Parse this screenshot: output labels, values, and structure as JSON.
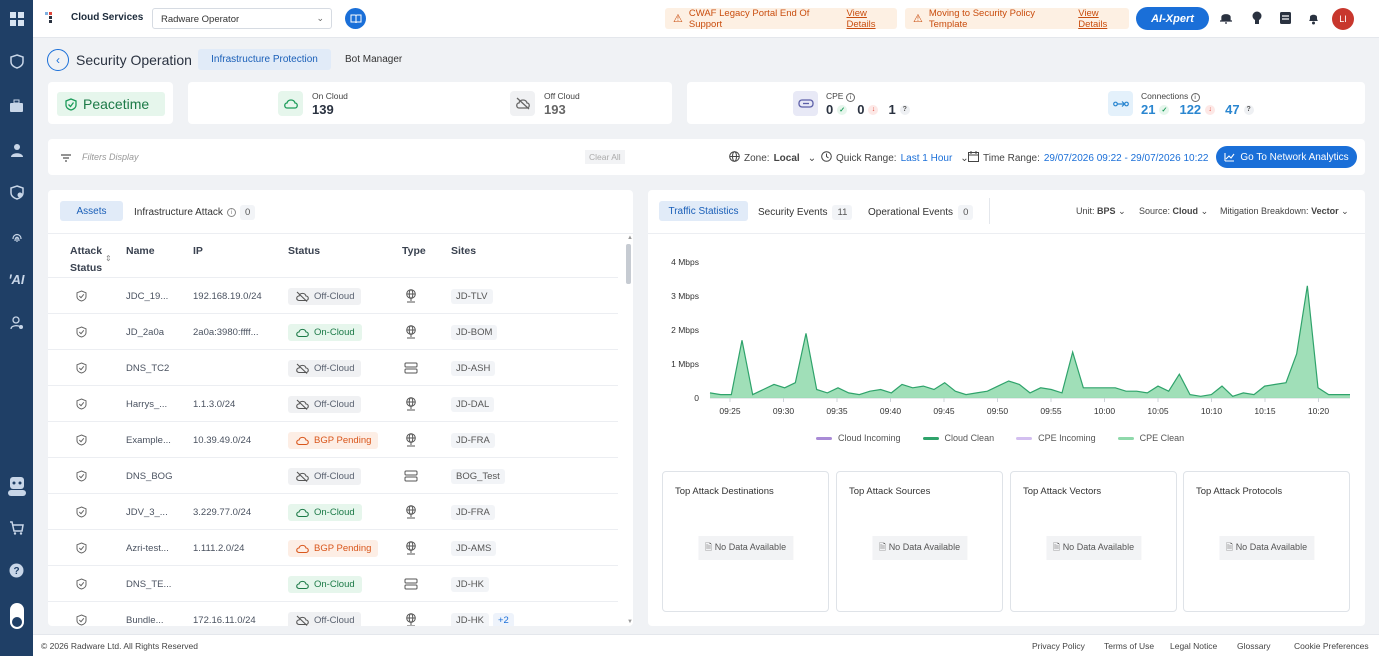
{
  "topbar": {
    "brand": "Cloud Services",
    "account": "Radware Operator",
    "alert1_text": "CWAF Legacy Portal End Of Support",
    "alert1_link": "View Details",
    "alert2_text": "Moving to Security Policy Template",
    "alert2_link": "View Details",
    "ai_label": "AI-Xpert",
    "avatar": "LI"
  },
  "header": {
    "title": "Security Operation",
    "tabs": [
      {
        "label": "Infrastructure Protection",
        "active": true
      },
      {
        "label": "Bot Manager",
        "active": false
      }
    ]
  },
  "summary": {
    "status": "Peacetime",
    "on_cloud_label": "On Cloud",
    "on_cloud_value": "139",
    "off_cloud_label": "Off Cloud",
    "off_cloud_value": "193",
    "cpe_label": "CPE",
    "cpe_ok": "0",
    "cpe_down": "0",
    "cpe_unknown": "1",
    "conn_label": "Connections",
    "conn_ok": "21",
    "conn_down": "122",
    "conn_unknown": "47"
  },
  "filters": {
    "placeholder": "Filters Display",
    "clear": "Clear All",
    "zone_label": "Zone:",
    "zone_value": "Local",
    "range_label": "Quick Range:",
    "range_value": "Last 1 Hour",
    "time_label": "Time Range:",
    "time_value": "29/07/2026 09:22 - 29/07/2026 10:22",
    "go_button": "Go To Network Analytics"
  },
  "assets": {
    "tab_assets": "Assets",
    "tab_attack": "Infrastructure Attack",
    "attack_count": "0",
    "columns": {
      "attack_status_1": "Attack",
      "attack_status_2": "Status",
      "name": "Name",
      "ip": "IP",
      "status": "Status",
      "type": "Type",
      "sites": "Sites"
    },
    "rows": [
      {
        "name": "JDC_19...",
        "ip": "192.168.19.0/24",
        "status": "Off-Cloud",
        "kind": "off",
        "type": "globe",
        "site": "JD-TLV"
      },
      {
        "name": "JD_2a0a",
        "ip": "2a0a:3980:ffff...",
        "status": "On-Cloud",
        "kind": "on",
        "type": "globe",
        "site": "JD-BOM"
      },
      {
        "name": "DNS_TC2",
        "ip": "",
        "status": "Off-Cloud",
        "kind": "off",
        "type": "server",
        "site": "JD-ASH"
      },
      {
        "name": "Harrys_...",
        "ip": "1.1.3.0/24",
        "status": "Off-Cloud",
        "kind": "off",
        "type": "globe",
        "site": "JD-DAL"
      },
      {
        "name": "Example...",
        "ip": "10.39.49.0/24",
        "status": "BGP Pending",
        "kind": "pend",
        "type": "globe",
        "site": "JD-FRA"
      },
      {
        "name": "DNS_BOG",
        "ip": "",
        "status": "Off-Cloud",
        "kind": "off",
        "type": "server",
        "site": "BOG_Test"
      },
      {
        "name": "JDV_3_...",
        "ip": "3.229.77.0/24",
        "status": "On-Cloud",
        "kind": "on",
        "type": "globe",
        "site": "JD-FRA"
      },
      {
        "name": "Azri-test...",
        "ip": "1.111.2.0/24",
        "status": "BGP Pending",
        "kind": "pend",
        "type": "globe",
        "site": "JD-AMS"
      },
      {
        "name": "DNS_TE...",
        "ip": "",
        "status": "On-Cloud",
        "kind": "on",
        "type": "server",
        "site": "JD-HK"
      },
      {
        "name": "Bundle...",
        "ip": "172.16.11.0/24",
        "status": "Off-Cloud",
        "kind": "off",
        "type": "globe",
        "site": "JD-HK",
        "extra": "+2"
      }
    ]
  },
  "traffic": {
    "tab_stats": "Traffic Statistics",
    "tab_security": "Security Events",
    "security_count": "11",
    "tab_operational": "Operational Events",
    "operational_count": "0",
    "unit_label": "Unit:",
    "unit_value": "BPS",
    "source_label": "Source:",
    "source_value": "Cloud",
    "mitigation_label": "Mitigation Breakdown:",
    "mitigation_value": "Vector"
  },
  "chart_data": {
    "type": "area",
    "title": "",
    "xlabel": "",
    "ylabel": "",
    "yticks": [
      "0",
      "1 Mbps",
      "2 Mbps",
      "3 Mbps",
      "4 Mbps"
    ],
    "ylim": [
      0,
      4
    ],
    "xticks": [
      "09:25",
      "09:30",
      "09:35",
      "09:40",
      "09:45",
      "09:50",
      "09:55",
      "10:00",
      "10:05",
      "10:10",
      "10:15",
      "10:20"
    ],
    "series": [
      {
        "name": "Cloud Incoming",
        "color": "#a98bd6",
        "values": [
          0,
          0,
          0,
          0,
          0,
          0,
          0,
          0,
          0,
          0,
          0,
          0,
          0,
          0,
          0,
          0,
          0,
          0,
          0,
          0,
          0,
          0,
          0,
          0,
          0,
          0,
          0,
          0,
          0,
          0,
          0,
          0,
          0,
          0,
          0,
          0,
          0,
          0,
          0,
          0,
          0,
          0,
          0,
          0,
          0,
          0,
          0,
          0,
          0,
          0,
          0,
          0,
          0,
          0,
          0,
          0,
          0,
          0,
          0,
          0,
          0
        ]
      },
      {
        "name": "Cloud Clean",
        "color": "#2fa36b",
        "values": [
          0.15,
          0.1,
          0.1,
          1.7,
          0.1,
          0.25,
          0.4,
          0.3,
          0.45,
          1.9,
          0.25,
          0.15,
          0.3,
          0.15,
          0.1,
          0.2,
          0.25,
          0.15,
          0.4,
          0.3,
          0.35,
          0.25,
          0.45,
          0.2,
          0.1,
          0.15,
          0.2,
          0.35,
          0.5,
          0.4,
          0.15,
          0.3,
          0.25,
          0.15,
          1.35,
          0.3,
          0.3,
          0.3,
          0.3,
          0.2,
          0.2,
          0.15,
          0.35,
          0.2,
          0.7,
          0.1,
          0.05,
          0.1,
          0.35,
          0.05,
          0.15,
          0.1,
          0.35,
          0.4,
          0.45,
          1.3,
          3.3,
          0.3,
          0.1,
          0.1,
          0.1
        ]
      },
      {
        "name": "CPE Incoming",
        "color": "#d3bff0",
        "values": []
      },
      {
        "name": "CPE Clean",
        "color": "#8fd9ab",
        "values": []
      }
    ]
  },
  "top_boxes": [
    {
      "title": "Top Attack Destinations"
    },
    {
      "title": "Top Attack Sources"
    },
    {
      "title": "Top Attack Vectors"
    },
    {
      "title": "Top Attack Protocols"
    }
  ],
  "no_data": "No Data Available",
  "footer": {
    "copyright": "© 2026 Radware Ltd. All Rights Reserved",
    "links": [
      "Privacy Policy",
      "Terms of Use",
      "Legal Notice",
      "Glossary",
      "Cookie Preferences"
    ]
  }
}
